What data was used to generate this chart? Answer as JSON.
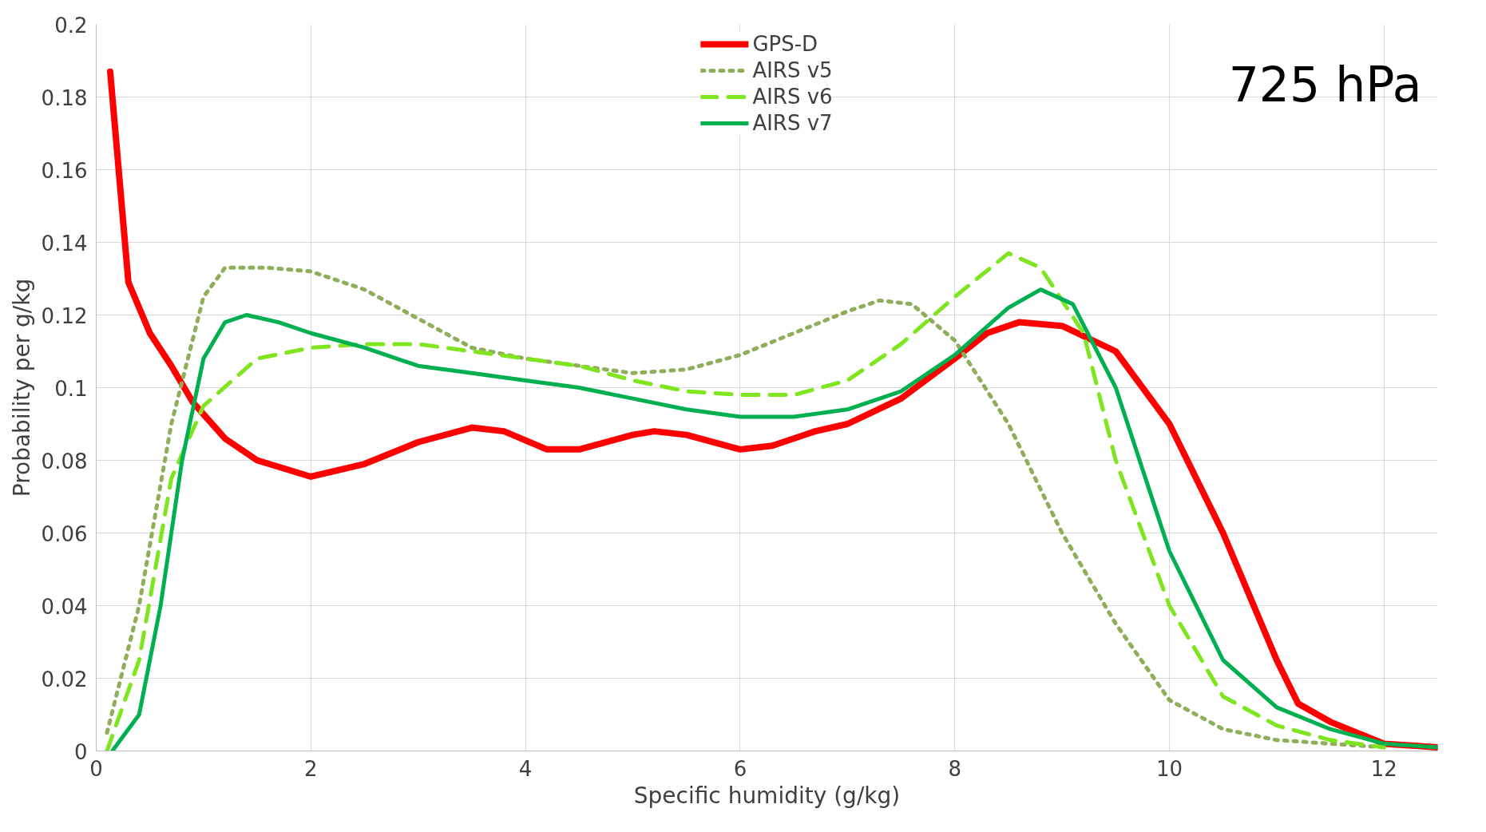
{
  "chart_data": {
    "type": "line",
    "xlabel": "Specific humidity (g/kg)",
    "ylabel": "Probability per g/kg",
    "annotations": [
      "725 hPa"
    ],
    "xlim": [
      0,
      12.5
    ],
    "xticks": [
      0,
      2,
      4,
      6,
      8,
      10,
      12
    ],
    "ylim": [
      0,
      0.2
    ],
    "yticks": [
      0,
      0.02,
      0.04,
      0.06,
      0.08,
      {
        "value": 0.1,
        "label": "0.1"
      },
      0.12,
      0.14,
      0.16,
      0.18,
      {
        "value": 0.2,
        "label": "0.2"
      }
    ],
    "grid": true,
    "legend": "top",
    "marker": "none",
    "series": [
      {
        "name": "GPS-D",
        "color": "#ff0000",
        "line_style": "solid",
        "x": [
          0.13,
          0.3,
          0.5,
          0.7,
          0.9,
          1.2,
          1.5,
          2,
          2.5,
          3,
          3.5,
          3.8,
          4.2,
          4.5,
          5,
          5.2,
          5.5,
          6,
          6.3,
          6.7,
          7,
          7.5,
          8,
          8.3,
          8.6,
          9,
          9.5,
          10,
          10.5,
          11,
          11.2,
          11.5,
          12,
          12.5
        ],
        "values": [
          0.187,
          0.129,
          0.115,
          0.106,
          0.096,
          0.086,
          0.08,
          0.0755,
          0.079,
          0.085,
          0.089,
          0.088,
          0.083,
          0.083,
          0.087,
          0.088,
          0.087,
          0.083,
          0.084,
          0.088,
          0.09,
          0.097,
          0.108,
          0.115,
          0.118,
          0.117,
          0.11,
          0.09,
          0.06,
          0.025,
          0.013,
          0.008,
          0.002,
          0.001
        ]
      },
      {
        "name": "AIRS v5",
        "color": "#8fae5a",
        "line_style": "dotted",
        "x": [
          0.1,
          0.4,
          0.7,
          1.0,
          1.2,
          1.6,
          2.0,
          2.5,
          3,
          3.5,
          4,
          4.5,
          5,
          5.5,
          6,
          6.5,
          7,
          7.3,
          7.6,
          8,
          8.5,
          9,
          9.5,
          10,
          10.5,
          11,
          11.5,
          12
        ],
        "values": [
          0.005,
          0.04,
          0.09,
          0.125,
          0.133,
          0.133,
          0.132,
          0.127,
          0.119,
          0.111,
          0.108,
          0.106,
          0.104,
          0.105,
          0.109,
          0.115,
          0.121,
          0.124,
          0.123,
          0.113,
          0.09,
          0.06,
          0.035,
          0.014,
          0.006,
          0.003,
          0.002,
          0.001
        ]
      },
      {
        "name": "AIRS v6",
        "color": "#7fe51f",
        "line_style": "dashed",
        "x": [
          0.1,
          0.4,
          0.7,
          1.0,
          1.5,
          2,
          2.5,
          3,
          3.5,
          4,
          4.5,
          5,
          5.5,
          6,
          6.5,
          7,
          7.5,
          8,
          8.5,
          8.8,
          9.2,
          9.5,
          10,
          10.5,
          11,
          11.5,
          12
        ],
        "values": [
          0.0,
          0.025,
          0.075,
          0.095,
          0.108,
          0.111,
          0.112,
          0.112,
          0.11,
          0.108,
          0.106,
          0.102,
          0.099,
          0.098,
          0.098,
          0.102,
          0.112,
          0.125,
          0.137,
          0.133,
          0.115,
          0.08,
          0.04,
          0.015,
          0.007,
          0.003,
          0.001
        ]
      },
      {
        "name": "AIRS v7",
        "color": "#00b050",
        "line_style": "solid",
        "x": [
          0.15,
          0.4,
          0.6,
          0.8,
          1.0,
          1.2,
          1.4,
          1.7,
          2,
          2.5,
          3,
          3.5,
          4,
          4.5,
          5,
          5.5,
          6,
          6.5,
          7,
          7.5,
          8,
          8.5,
          8.8,
          9.1,
          9.5,
          10,
          10.5,
          11,
          11.5,
          12,
          12.5
        ],
        "values": [
          0.0,
          0.01,
          0.04,
          0.08,
          0.108,
          0.118,
          0.12,
          0.118,
          0.115,
          0.111,
          0.106,
          0.104,
          0.102,
          0.1,
          0.097,
          0.094,
          0.092,
          0.092,
          0.094,
          0.099,
          0.109,
          0.122,
          0.127,
          0.123,
          0.1,
          0.055,
          0.025,
          0.012,
          0.006,
          0.002,
          0.001
        ]
      }
    ]
  }
}
